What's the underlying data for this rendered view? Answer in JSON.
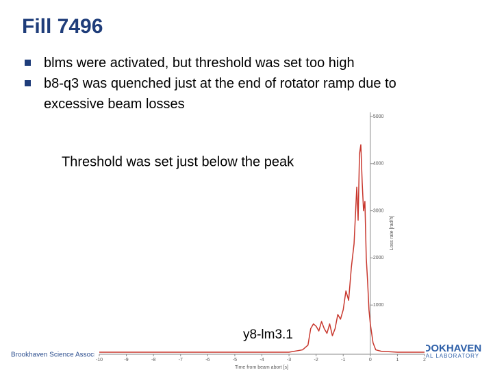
{
  "slide": {
    "title": "Fill 7496",
    "bullets": [
      "blms were activated, but threshold was set too high",
      "b8-q3 was quenched just at the end of rotator ramp due to excessive beam losses"
    ],
    "annotations": [
      "Threshold was set just below the peak",
      "y8-lm3.1"
    ],
    "footer": "Brookhaven Science Associates",
    "logo": [
      "BROOKHAVEN",
      "NATIONAL LABORATORY"
    ]
  },
  "chart_data": {
    "type": "line",
    "xlabel": "Time from beam abort [s]",
    "ylabel": "Loss rate [rad/h]",
    "color": "#c8372d",
    "x": [
      -10,
      -3,
      -2.5,
      -2.3,
      -2.2,
      -2.1,
      -2.0,
      -1.9,
      -1.8,
      -1.7,
      -1.6,
      -1.5,
      -1.4,
      -1.3,
      -1.2,
      -1.1,
      -1.0,
      -0.9,
      -0.8,
      -0.7,
      -0.6,
      -0.5,
      -0.45,
      -0.4,
      -0.35,
      -0.3,
      -0.25,
      -0.2,
      -0.15,
      -0.1,
      -0.05,
      0,
      0.1,
      0.2,
      0.4,
      1,
      2
    ],
    "values": [
      0,
      0,
      50,
      150,
      500,
      600,
      550,
      450,
      650,
      500,
      400,
      600,
      350,
      500,
      800,
      700,
      900,
      1300,
      1100,
      1800,
      2300,
      3500,
      2800,
      4200,
      4400,
      3600,
      3000,
      3200,
      2000,
      1500,
      900,
      600,
      200,
      50,
      20,
      0,
      0
    ],
    "xlim": [
      -10,
      2
    ],
    "ylim": [
      0,
      5000
    ],
    "xticks": [
      -10,
      -9,
      -8,
      -7,
      -6,
      -5,
      -4,
      -3,
      -2,
      -1,
      0,
      1,
      2
    ],
    "yticks": [
      1000,
      2000,
      3000,
      4000,
      5000
    ]
  }
}
